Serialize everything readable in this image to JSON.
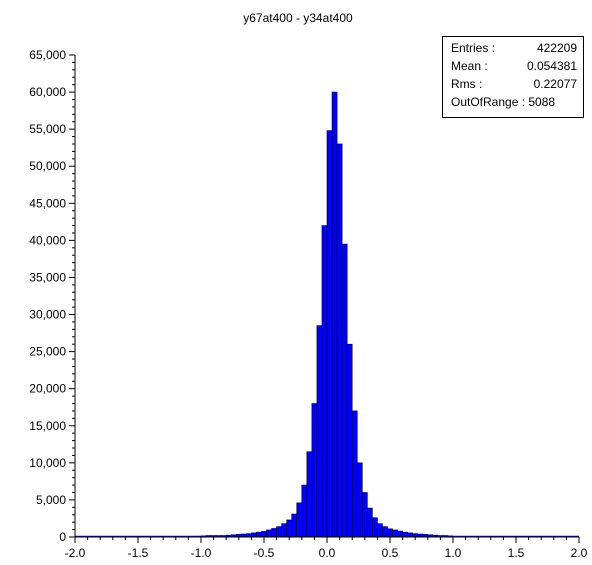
{
  "chart_data": {
    "type": "bar",
    "title": "y67at400 - y34at400",
    "xlabel": "",
    "ylabel": "",
    "xlim": [
      -2.0,
      2.0
    ],
    "ylim": [
      0,
      65000
    ],
    "grid": false,
    "legend": "none",
    "bar_color": "#0000ff",
    "x_ticks": [
      "-2.0",
      "-1.5",
      "-1.0",
      "-0.5",
      "0.0",
      "0.5",
      "1.0",
      "1.5",
      "2.0"
    ],
    "x_tick_values": [
      -2.0,
      -1.5,
      -1.0,
      -0.5,
      0.0,
      0.5,
      1.0,
      1.5,
      2.0
    ],
    "y_ticks": [
      "0",
      "5,000",
      "10,000",
      "15,000",
      "20,000",
      "25,000",
      "30,000",
      "35,000",
      "40,000",
      "45,000",
      "50,000",
      "55,000",
      "60,000",
      "65,000"
    ],
    "y_tick_values": [
      0,
      5000,
      10000,
      15000,
      20000,
      25000,
      30000,
      35000,
      40000,
      45000,
      50000,
      55000,
      60000,
      65000
    ],
    "bin_width": 0.04,
    "bins": [
      [
        -1.04,
        100
      ],
      [
        -1.0,
        150
      ],
      [
        -0.96,
        200
      ],
      [
        -0.92,
        200
      ],
      [
        -0.88,
        200
      ],
      [
        -0.84,
        200
      ],
      [
        -0.8,
        250
      ],
      [
        -0.76,
        300
      ],
      [
        -0.72,
        350
      ],
      [
        -0.68,
        400
      ],
      [
        -0.64,
        450
      ],
      [
        -0.6,
        550
      ],
      [
        -0.56,
        650
      ],
      [
        -0.52,
        750
      ],
      [
        -0.48,
        950
      ],
      [
        -0.44,
        1150
      ],
      [
        -0.4,
        1400
      ],
      [
        -0.36,
        1800
      ],
      [
        -0.32,
        2300
      ],
      [
        -0.28,
        3100
      ],
      [
        -0.24,
        4600
      ],
      [
        -0.2,
        7000
      ],
      [
        -0.16,
        11500
      ],
      [
        -0.12,
        18000
      ],
      [
        -0.08,
        28500
      ],
      [
        -0.04,
        42000
      ],
      [
        0.0,
        54800
      ],
      [
        0.04,
        60000
      ],
      [
        0.08,
        53000
      ],
      [
        0.12,
        39500
      ],
      [
        0.16,
        26000
      ],
      [
        0.2,
        17000
      ],
      [
        0.24,
        10000
      ],
      [
        0.28,
        6000
      ],
      [
        0.32,
        3900
      ],
      [
        0.36,
        2600
      ],
      [
        0.4,
        1800
      ],
      [
        0.44,
        1400
      ],
      [
        0.48,
        1100
      ],
      [
        0.52,
        950
      ],
      [
        0.56,
        800
      ],
      [
        0.6,
        650
      ],
      [
        0.64,
        550
      ],
      [
        0.68,
        450
      ],
      [
        0.72,
        400
      ],
      [
        0.76,
        350
      ],
      [
        0.8,
        300
      ],
      [
        0.84,
        250
      ],
      [
        0.88,
        200
      ],
      [
        0.92,
        200
      ],
      [
        0.96,
        150
      ],
      [
        1.0,
        100
      ]
    ],
    "stats": {
      "entries_label": "Entries :",
      "entries_value": "422209",
      "mean_label": "Mean :",
      "mean_value": "0.054381",
      "rms_label": "Rms :",
      "rms_value": "0.22077",
      "out_of_range": "OutOfRange : 5088"
    }
  }
}
